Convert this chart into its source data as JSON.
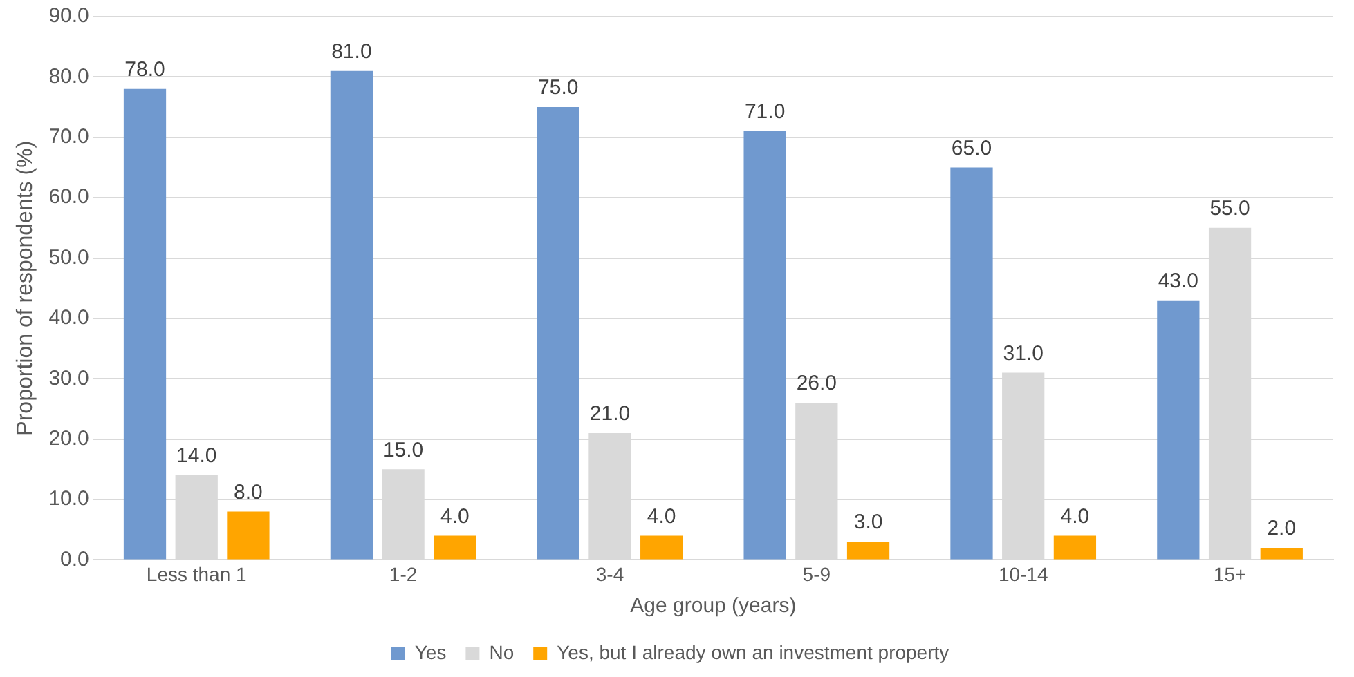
{
  "chart_data": {
    "type": "bar",
    "xlabel": "Age group (years)",
    "ylabel": "Proportion of respondents (%)",
    "categories": [
      "Less than 1",
      "1-2",
      "3-4",
      "5-9",
      "10-14",
      "15+"
    ],
    "series": [
      {
        "name": "Yes",
        "color": "#7099cf",
        "values": [
          78,
          81,
          75,
          71,
          65,
          43
        ],
        "value_labels": [
          "78.0",
          "81.0",
          "75.0",
          "71.0",
          "65.0",
          "43.0"
        ]
      },
      {
        "name": "No",
        "color": "#d9d9d9",
        "values": [
          14,
          15,
          21,
          26,
          31,
          55
        ],
        "value_labels": [
          "14.0",
          "15.0",
          "21.0",
          "26.0",
          "31.0",
          "55.0"
        ]
      },
      {
        "name": "Yes, but I already own an investment property",
        "color": "#ffa500",
        "values": [
          8,
          4,
          4,
          3,
          4,
          2
        ],
        "value_labels": [
          "8.0",
          "4.0",
          "4.0",
          "3.0",
          "4.0",
          "2.0"
        ]
      }
    ],
    "ylim": [
      0,
      90
    ],
    "yticks": [
      {
        "value": 0,
        "label": "0.0"
      },
      {
        "value": 10,
        "label": "10.0"
      },
      {
        "value": 20,
        "label": "20.0"
      },
      {
        "value": 30,
        "label": "30.0"
      },
      {
        "value": 40,
        "label": "40.0"
      },
      {
        "value": 50,
        "label": "50.0"
      },
      {
        "value": 60,
        "label": "60.0"
      },
      {
        "value": 70,
        "label": "70.0"
      },
      {
        "value": 80,
        "label": "80.0"
      },
      {
        "value": 90,
        "label": "90.0"
      }
    ],
    "grid": "y",
    "legend": "bottom"
  }
}
